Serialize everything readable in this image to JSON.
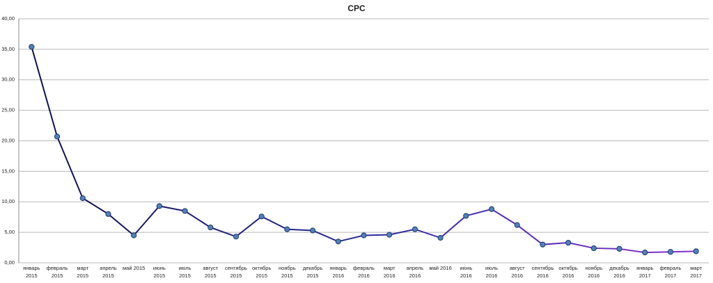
{
  "chart_data": {
    "type": "line",
    "title": "CPC",
    "categories": [
      "январь 2015",
      "февраль 2015",
      "март 2015",
      "апрель 2015",
      "май 2015",
      "июнь 2015",
      "июль 2015",
      "август 2015",
      "сентябрь 2015",
      "октябрь 2015",
      "ноябрь 2015",
      "декабрь 2015",
      "январь 2016",
      "февраль 2016",
      "март 2016",
      "апрель 2016",
      "май 2016",
      "июнь 2016",
      "июль 2016",
      "август 2016",
      "сентябрь 2016",
      "октябрь 2016",
      "ноябрь 2016",
      "декабрь 2016",
      "январь 2017",
      "февраль 2017",
      "март 2017"
    ],
    "values": [
      35.4,
      20.7,
      10.6,
      8.0,
      4.5,
      9.3,
      8.5,
      5.8,
      4.3,
      7.6,
      5.5,
      5.3,
      3.5,
      4.5,
      4.6,
      5.5,
      4.1,
      7.7,
      8.8,
      6.2,
      3.0,
      3.3,
      2.4,
      2.3,
      1.7,
      1.8,
      1.9
    ],
    "line_colors": [
      "#0d0d4a",
      "#2a2aa0",
      "#8a2ed0"
    ],
    "marker_color": "#4f81bd",
    "ylim": [
      0,
      40
    ],
    "yticks": [
      {
        "value": 0,
        "label": "0,00"
      },
      {
        "value": 5,
        "label": "5,00"
      },
      {
        "value": 10,
        "label": "10,00"
      },
      {
        "value": 15,
        "label": "15,00"
      },
      {
        "value": 20,
        "label": "20,00"
      },
      {
        "value": 25,
        "label": "25,00"
      },
      {
        "value": 30,
        "label": "30,00"
      },
      {
        "value": 35,
        "label": "35,00"
      },
      {
        "value": 40,
        "label": "40,00"
      }
    ],
    "grid": true
  }
}
